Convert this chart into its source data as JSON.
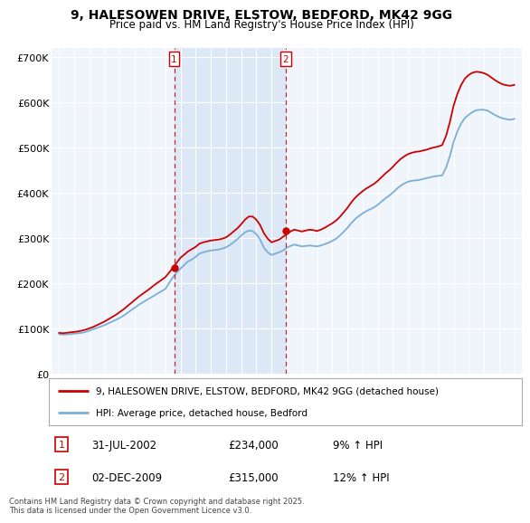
{
  "title": "9, HALESOWEN DRIVE, ELSTOW, BEDFORD, MK42 9GG",
  "subtitle": "Price paid vs. HM Land Registry's House Price Index (HPI)",
  "legend_line1": "9, HALESOWEN DRIVE, ELSTOW, BEDFORD, MK42 9GG (detached house)",
  "legend_line2": "HPI: Average price, detached house, Bedford",
  "footnote": "Contains HM Land Registry data © Crown copyright and database right 2025.\nThis data is licensed under the Open Government Licence v3.0.",
  "marker1_date": "31-JUL-2002",
  "marker1_price": "£234,000",
  "marker1_hpi": "9% ↑ HPI",
  "marker1_x": 2002.58,
  "marker1_y": 234000,
  "marker2_date": "02-DEC-2009",
  "marker2_price": "£315,000",
  "marker2_hpi": "12% ↑ HPI",
  "marker2_x": 2009.92,
  "marker2_y": 315000,
  "ylim": [
    0,
    720000
  ],
  "xlim": [
    1994.5,
    2025.5
  ],
  "yticks": [
    0,
    100000,
    200000,
    300000,
    400000,
    500000,
    600000,
    700000
  ],
  "ytick_labels": [
    "£0",
    "£100K",
    "£200K",
    "£300K",
    "£400K",
    "£500K",
    "£600K",
    "£700K"
  ],
  "xticks": [
    1995,
    1996,
    1997,
    1998,
    1999,
    2000,
    2001,
    2002,
    2003,
    2004,
    2005,
    2006,
    2007,
    2008,
    2009,
    2010,
    2011,
    2012,
    2013,
    2014,
    2015,
    2016,
    2017,
    2018,
    2019,
    2020,
    2021,
    2022,
    2023,
    2024,
    2025
  ],
  "hpi_color": "#7bafd4",
  "price_color": "#cc0000",
  "marker_color": "#cc0000",
  "shade_color": "#dce8f5",
  "bg_color": "#f0f4fb",
  "grid_color": "#ffffff",
  "hpi_data_x": [
    1995.0,
    1995.25,
    1995.5,
    1995.75,
    1996.0,
    1996.25,
    1996.5,
    1996.75,
    1997.0,
    1997.25,
    1997.5,
    1997.75,
    1998.0,
    1998.25,
    1998.5,
    1998.75,
    1999.0,
    1999.25,
    1999.5,
    1999.75,
    2000.0,
    2000.25,
    2000.5,
    2000.75,
    2001.0,
    2001.25,
    2001.5,
    2001.75,
    2002.0,
    2002.25,
    2002.5,
    2002.75,
    2003.0,
    2003.25,
    2003.5,
    2003.75,
    2004.0,
    2004.25,
    2004.5,
    2004.75,
    2005.0,
    2005.25,
    2005.5,
    2005.75,
    2006.0,
    2006.25,
    2006.5,
    2006.75,
    2007.0,
    2007.25,
    2007.5,
    2007.75,
    2008.0,
    2008.25,
    2008.5,
    2008.75,
    2009.0,
    2009.25,
    2009.5,
    2009.75,
    2010.0,
    2010.25,
    2010.5,
    2010.75,
    2011.0,
    2011.25,
    2011.5,
    2011.75,
    2012.0,
    2012.25,
    2012.5,
    2012.75,
    2013.0,
    2013.25,
    2013.5,
    2013.75,
    2014.0,
    2014.25,
    2014.5,
    2014.75,
    2015.0,
    2015.25,
    2015.5,
    2015.75,
    2016.0,
    2016.25,
    2016.5,
    2016.75,
    2017.0,
    2017.25,
    2017.5,
    2017.75,
    2018.0,
    2018.25,
    2018.5,
    2018.75,
    2019.0,
    2019.25,
    2019.5,
    2019.75,
    2020.0,
    2020.25,
    2020.5,
    2020.75,
    2021.0,
    2021.25,
    2021.5,
    2021.75,
    2022.0,
    2022.25,
    2022.5,
    2022.75,
    2023.0,
    2023.25,
    2023.5,
    2023.75,
    2024.0,
    2024.25,
    2024.5,
    2024.75,
    2025.0
  ],
  "hpi_data_y": [
    87000,
    86000,
    86500,
    87000,
    88000,
    89000,
    90000,
    92000,
    95000,
    98000,
    101000,
    104000,
    107000,
    111000,
    115000,
    119000,
    123000,
    128000,
    134000,
    140000,
    146000,
    152000,
    157000,
    162000,
    167000,
    172000,
    177000,
    182000,
    187000,
    200000,
    213000,
    223000,
    232000,
    240000,
    248000,
    252000,
    258000,
    265000,
    268000,
    270000,
    272000,
    273000,
    274000,
    276000,
    279000,
    284000,
    290000,
    297000,
    305000,
    312000,
    316000,
    315000,
    308000,
    296000,
    278000,
    268000,
    262000,
    265000,
    268000,
    272000,
    278000,
    282000,
    285000,
    283000,
    281000,
    282000,
    283000,
    282000,
    281000,
    283000,
    286000,
    289000,
    293000,
    298000,
    305000,
    313000,
    322000,
    332000,
    341000,
    348000,
    354000,
    359000,
    363000,
    367000,
    373000,
    380000,
    387000,
    393000,
    400000,
    408000,
    415000,
    420000,
    424000,
    426000,
    427000,
    428000,
    430000,
    432000,
    434000,
    436000,
    437000,
    438000,
    455000,
    480000,
    512000,
    535000,
    553000,
    565000,
    572000,
    578000,
    582000,
    583000,
    583000,
    581000,
    576000,
    571000,
    567000,
    564000,
    562000,
    561000,
    563000
  ],
  "price_data_x": [
    1995.0,
    1995.25,
    1995.5,
    1995.75,
    1996.0,
    1996.25,
    1996.5,
    1996.75,
    1997.0,
    1997.25,
    1997.5,
    1997.75,
    1998.0,
    1998.25,
    1998.5,
    1998.75,
    1999.0,
    1999.25,
    1999.5,
    1999.75,
    2000.0,
    2000.25,
    2000.5,
    2000.75,
    2001.0,
    2001.25,
    2001.5,
    2001.75,
    2002.0,
    2002.25,
    2002.5,
    2002.75,
    2003.0,
    2003.25,
    2003.5,
    2003.75,
    2004.0,
    2004.25,
    2004.5,
    2004.75,
    2005.0,
    2005.25,
    2005.5,
    2005.75,
    2006.0,
    2006.25,
    2006.5,
    2006.75,
    2007.0,
    2007.25,
    2007.5,
    2007.75,
    2008.0,
    2008.25,
    2008.5,
    2008.75,
    2009.0,
    2009.25,
    2009.5,
    2009.75,
    2010.0,
    2010.25,
    2010.5,
    2010.75,
    2011.0,
    2011.25,
    2011.5,
    2011.75,
    2012.0,
    2012.25,
    2012.5,
    2012.75,
    2013.0,
    2013.25,
    2013.5,
    2013.75,
    2014.0,
    2014.25,
    2014.5,
    2014.75,
    2015.0,
    2015.25,
    2015.5,
    2015.75,
    2016.0,
    2016.25,
    2016.5,
    2016.75,
    2017.0,
    2017.25,
    2017.5,
    2017.75,
    2018.0,
    2018.25,
    2018.5,
    2018.75,
    2019.0,
    2019.25,
    2019.5,
    2019.75,
    2020.0,
    2020.25,
    2020.5,
    2020.75,
    2021.0,
    2021.25,
    2021.5,
    2021.75,
    2022.0,
    2022.25,
    2022.5,
    2022.75,
    2023.0,
    2023.25,
    2023.5,
    2023.75,
    2024.0,
    2024.25,
    2024.5,
    2024.75,
    2025.0
  ],
  "price_data_y": [
    90000,
    89000,
    90000,
    91000,
    92000,
    93000,
    95000,
    97000,
    100000,
    103000,
    107000,
    111000,
    115000,
    120000,
    125000,
    130000,
    136000,
    142000,
    149000,
    156000,
    163000,
    170000,
    176000,
    182000,
    188000,
    195000,
    201000,
    207000,
    213000,
    223000,
    234000,
    245000,
    256000,
    263000,
    270000,
    275000,
    280000,
    287000,
    290000,
    292000,
    294000,
    295000,
    296000,
    298000,
    301000,
    307000,
    314000,
    321000,
    330000,
    340000,
    347000,
    347000,
    340000,
    328000,
    310000,
    298000,
    290000,
    293000,
    296000,
    302000,
    308000,
    314000,
    318000,
    316000,
    314000,
    316000,
    318000,
    317000,
    315000,
    318000,
    322000,
    327000,
    332000,
    338000,
    346000,
    356000,
    366000,
    378000,
    388000,
    396000,
    403000,
    409000,
    414000,
    419000,
    426000,
    434000,
    442000,
    449000,
    457000,
    466000,
    474000,
    480000,
    485000,
    488000,
    490000,
    491000,
    493000,
    495000,
    498000,
    500000,
    502000,
    505000,
    525000,
    555000,
    592000,
    618000,
    638000,
    652000,
    660000,
    665000,
    667000,
    666000,
    664000,
    660000,
    654000,
    648000,
    643000,
    639000,
    637000,
    636000,
    638000
  ]
}
